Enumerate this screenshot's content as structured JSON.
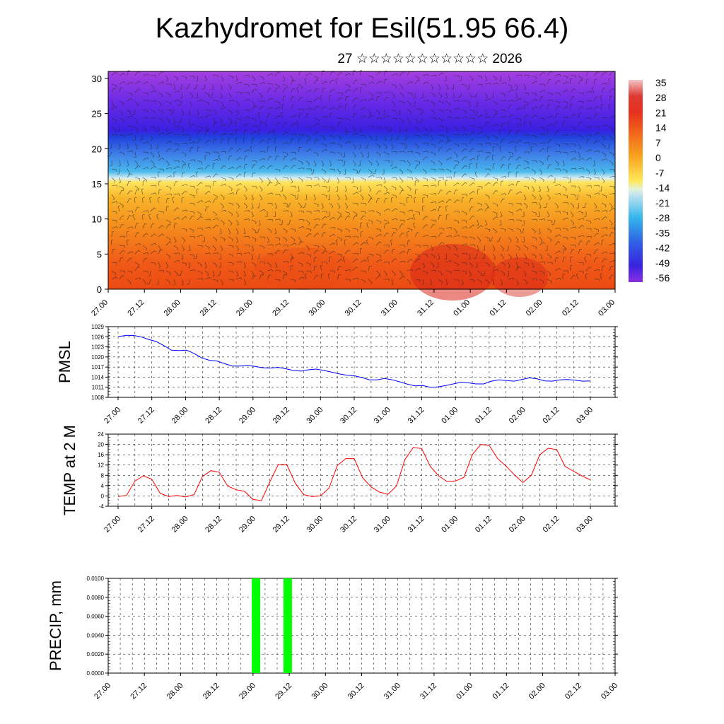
{
  "title": "Kazhydromet for Esil(51.95 66.4)",
  "subtitle": "27 ☆☆☆☆☆☆☆☆☆☆☆ 2026",
  "time_labels": [
    "27.00",
    "27.12",
    "28.00",
    "28.12",
    "29.00",
    "29.12",
    "30.00",
    "30.12",
    "31.00",
    "31.12",
    "01.00",
    "01.12",
    "02.00",
    "02.12",
    "03.00"
  ],
  "chart_data": [
    {
      "type": "heatmap",
      "title": "Vertical cross-section (temperature and wind barbs)",
      "ylim": [
        0,
        31
      ],
      "yticks": [
        0,
        5,
        10,
        15,
        20,
        25,
        30
      ],
      "colorbar_labels": [
        "35",
        "28",
        "21",
        "14",
        "7",
        "0",
        "-7",
        "-14",
        "-21",
        "-28",
        "-35",
        "-42",
        "-49",
        "-56"
      ],
      "colorbar_colors": [
        "#f2c4c4",
        "#d9302a",
        "#f2601c",
        "#f7a51f",
        "#ffe75a",
        "#bfe3f0",
        "#35b7ea",
        "#2f63e6",
        "#3a22e0",
        "#8b2fe0"
      ]
    },
    {
      "type": "line",
      "ylabel": "PMSL",
      "ylim": [
        1008,
        1029
      ],
      "yticks": [
        1008,
        1011,
        1014,
        1017,
        1020,
        1023,
        1026,
        1029
      ],
      "color": "#0000ff",
      "values": [
        1026,
        1026.4,
        1026.4,
        1026,
        1025.2,
        1024.6,
        1023.4,
        1022,
        1021.9,
        1022,
        1021,
        1019.7,
        1019,
        1018.8,
        1018,
        1017.3,
        1017.3,
        1017.5,
        1017.2,
        1016.8,
        1016.7,
        1016.9,
        1016.5,
        1016,
        1015.8,
        1016.2,
        1016.4,
        1016,
        1015.5,
        1015,
        1014.6,
        1014.4,
        1013.9,
        1013.2,
        1013.2,
        1013.6,
        1013.2,
        1012.6,
        1011.9,
        1011.4,
        1011.5,
        1011,
        1011.1,
        1011.5,
        1012,
        1012.5,
        1012.3,
        1012,
        1012,
        1012.8,
        1013.2,
        1013,
        1012.8,
        1013.3,
        1013.8,
        1013.5,
        1012.9,
        1012.8,
        1013.2,
        1013.3,
        1013.1,
        1012.8,
        1012.9
      ]
    },
    {
      "type": "line",
      "ylabel": "TEMP at 2 M",
      "ylim": [
        -4,
        24
      ],
      "yticks": [
        -4,
        0,
        4,
        8,
        12,
        16,
        20,
        24
      ],
      "color": "#ff0000",
      "values": [
        -0.2,
        0.2,
        5.8,
        7.8,
        6.5,
        1,
        -0.2,
        0.2,
        -0.4,
        0.5,
        7.5,
        9.8,
        9.2,
        3.8,
        2.4,
        1.8,
        -1.4,
        -1.8,
        5.5,
        12.2,
        12.2,
        5,
        0.5,
        -0.2,
        0,
        3,
        11.8,
        14.5,
        14.5,
        7,
        3.5,
        1.5,
        0.6,
        3.8,
        14,
        18.8,
        18.4,
        11.5,
        7.8,
        5.6,
        5.8,
        7.2,
        16,
        20,
        19.6,
        14.5,
        11.6,
        8.2,
        5.2,
        8,
        16,
        18.5,
        18,
        11.5,
        9.6,
        7.8,
        6.2
      ]
    },
    {
      "type": "bar",
      "ylabel": "PRECIP, mm",
      "ylim": [
        0,
        0.01
      ],
      "yticks": [
        "0.0000",
        "0.0020",
        "0.0040",
        "0.0060",
        "0.0080",
        "0.0100"
      ],
      "color": "#00ff00",
      "bars": [
        {
          "time": 28.75,
          "value": 0.01
        },
        {
          "time": 29.125,
          "value": 0.01
        }
      ]
    }
  ]
}
